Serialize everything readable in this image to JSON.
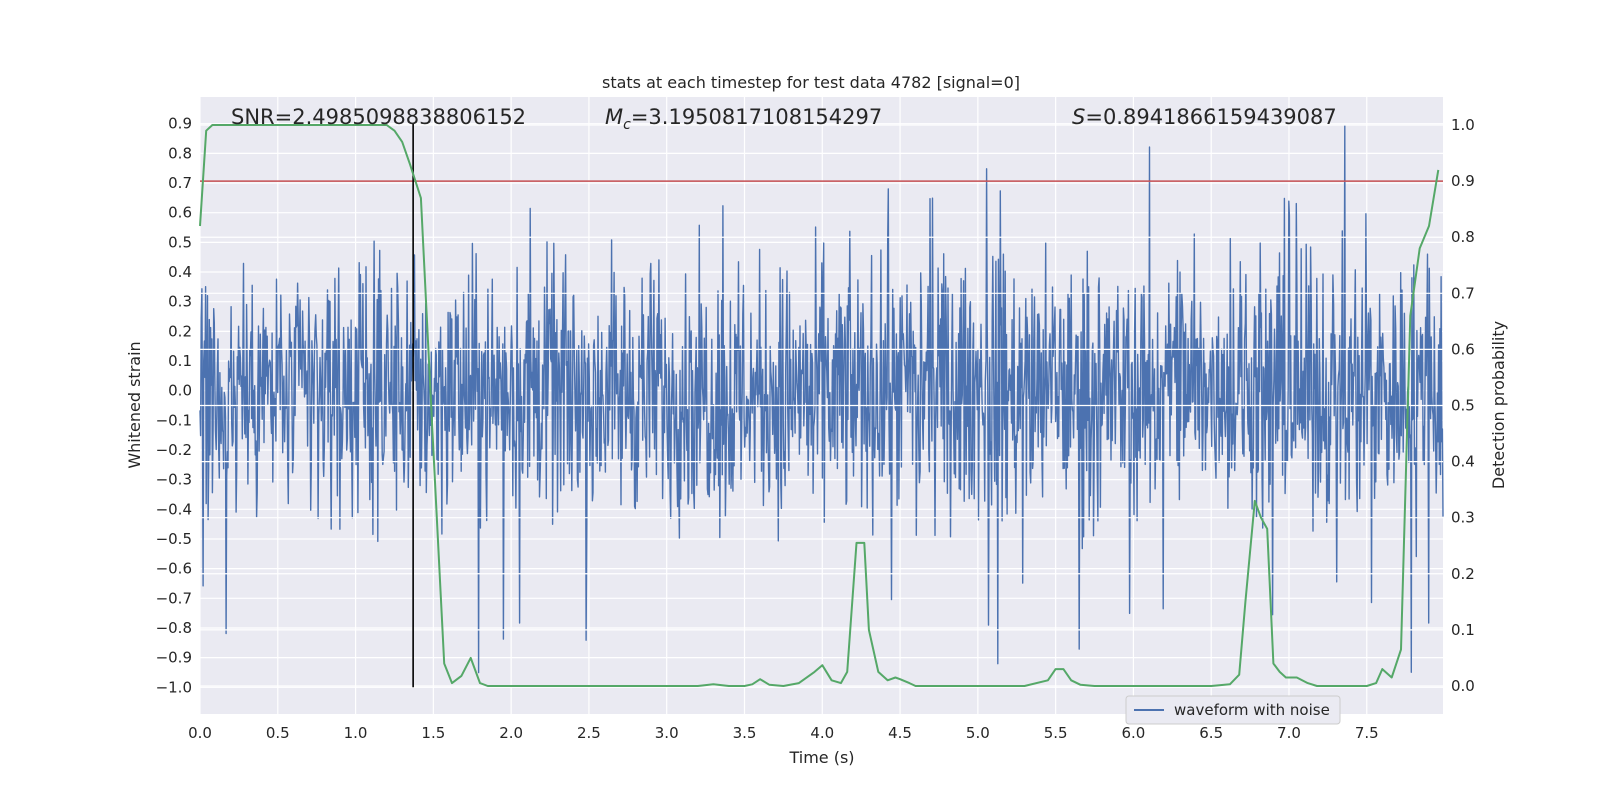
{
  "chart_data": {
    "type": "line",
    "title": "stats at each timestep for test data 4782 [signal=0]",
    "xlabel": "Time (s)",
    "ylabel_left": "Whitened strain",
    "ylabel_right": "Detection probability",
    "xlim": [
      0.0,
      7.99
    ],
    "ylim_left": [
      -1.09,
      0.99
    ],
    "ylim_right": [
      -0.05,
      1.05
    ],
    "x_ticks": [
      0.0,
      0.5,
      1.0,
      1.5,
      2.0,
      2.5,
      3.0,
      3.5,
      4.0,
      4.5,
      5.0,
      5.5,
      6.0,
      6.5,
      7.0,
      7.5
    ],
    "x_tick_labels": [
      "0.0",
      "0.5",
      "1.0",
      "1.5",
      "2.0",
      "2.5",
      "3.0",
      "3.5",
      "4.0",
      "4.5",
      "5.0",
      "5.5",
      "6.0",
      "6.5",
      "7.0",
      "7.5"
    ],
    "y_left_ticks": [
      0.9,
      0.8,
      0.7,
      0.6,
      0.5,
      0.4,
      0.3,
      0.2,
      0.1,
      0.0,
      -0.1,
      -0.2,
      -0.3,
      -0.4,
      -0.5,
      -0.6,
      -0.7,
      -0.8,
      -0.9,
      -1.0
    ],
    "y_left_tick_labels": [
      "0.9",
      "0.8",
      "0.7",
      "0.6",
      "0.5",
      "0.4",
      "0.3",
      "0.2",
      "0.1",
      "0.0",
      "−0.1",
      "−0.2",
      "−0.3",
      "−0.4",
      "−0.5",
      "−0.6",
      "−0.7",
      "−0.8",
      "−0.9",
      "−1.0"
    ],
    "y_right_ticks": [
      1.0,
      0.9,
      0.8,
      0.7,
      0.6,
      0.5,
      0.4,
      0.3,
      0.2,
      0.1,
      0.0
    ],
    "y_right_tick_labels": [
      "1.0",
      "0.9",
      "0.8",
      "0.7",
      "0.6",
      "0.5",
      "0.4",
      "0.3",
      "0.2",
      "0.1",
      "0.0"
    ],
    "threshold": 0.9,
    "vline_x": 1.37,
    "vline_ymin": -1.0,
    "vline_ymax": 0.9,
    "series": [
      {
        "name": "waveform with noise",
        "axis": "left",
        "color": "#4c72b0",
        "kind": "noise",
        "sample_count": 2000,
        "typical_upper": 0.35,
        "typical_lower": -0.3,
        "max": 0.9,
        "min": -1.0
      },
      {
        "name": "detection probability",
        "axis": "right",
        "color": "#55a868",
        "x": [
          0.0,
          0.04,
          0.08,
          0.12,
          0.2,
          0.4,
          0.6,
          0.8,
          1.0,
          1.2,
          1.25,
          1.3,
          1.35,
          1.42,
          1.5,
          1.57,
          1.62,
          1.68,
          1.74,
          1.8,
          1.85,
          1.95,
          2.1,
          2.3,
          2.6,
          3.0,
          3.2,
          3.3,
          3.4,
          3.5,
          3.55,
          3.6,
          3.66,
          3.75,
          3.85,
          3.95,
          4.0,
          4.06,
          4.12,
          4.16,
          4.22,
          4.27,
          4.3,
          4.36,
          4.42,
          4.47,
          4.5,
          4.56,
          4.6,
          4.7,
          4.8,
          5.0,
          5.3,
          5.45,
          5.5,
          5.55,
          5.6,
          5.66,
          5.75,
          5.85,
          6.0,
          6.3,
          6.5,
          6.62,
          6.68,
          6.72,
          6.78,
          6.82,
          6.86,
          6.9,
          6.94,
          6.98,
          7.05,
          7.12,
          7.18,
          7.24,
          7.3,
          7.4,
          7.5,
          7.56,
          7.6,
          7.66,
          7.72,
          7.78,
          7.84,
          7.9,
          7.96
        ],
        "y": [
          0.82,
          0.99,
          1.0,
          1.0,
          1.0,
          1.0,
          1.0,
          1.0,
          1.0,
          1.0,
          0.99,
          0.97,
          0.93,
          0.87,
          0.42,
          0.04,
          0.005,
          0.018,
          0.05,
          0.005,
          0.0,
          0.0,
          0.0,
          0.0,
          0.0,
          0.0,
          0.0,
          0.003,
          0.0,
          0.0,
          0.003,
          0.012,
          0.002,
          0.0,
          0.005,
          0.025,
          0.037,
          0.01,
          0.005,
          0.025,
          0.255,
          0.255,
          0.1,
          0.025,
          0.01,
          0.015,
          0.012,
          0.005,
          0.0,
          0.0,
          0.0,
          0.0,
          0.0,
          0.01,
          0.03,
          0.03,
          0.01,
          0.002,
          0.0,
          0.0,
          0.0,
          0.0,
          0.0,
          0.003,
          0.02,
          0.15,
          0.33,
          0.3,
          0.28,
          0.04,
          0.025,
          0.015,
          0.015,
          0.005,
          0.0,
          0.0,
          0.0,
          0.0,
          0.0,
          0.005,
          0.03,
          0.015,
          0.065,
          0.66,
          0.78,
          0.82,
          0.92
        ]
      }
    ],
    "annotations": {
      "snr": "SNR=2.4985098838806152",
      "mc_symbol": "M",
      "mc_sub": "c",
      "mc_value": "=3.1950817108154297",
      "s_symbol": "S",
      "s_value": "=0.8941866159439087"
    },
    "legend": {
      "placement": "lower-right",
      "entries": [
        "waveform with noise"
      ]
    },
    "colors": {
      "background": "#eaeaf2",
      "grid": "#ffffff",
      "waveform": "#4c72b0",
      "probability": "#55a868",
      "threshold": "#c44e52",
      "marker": "#000000"
    }
  }
}
